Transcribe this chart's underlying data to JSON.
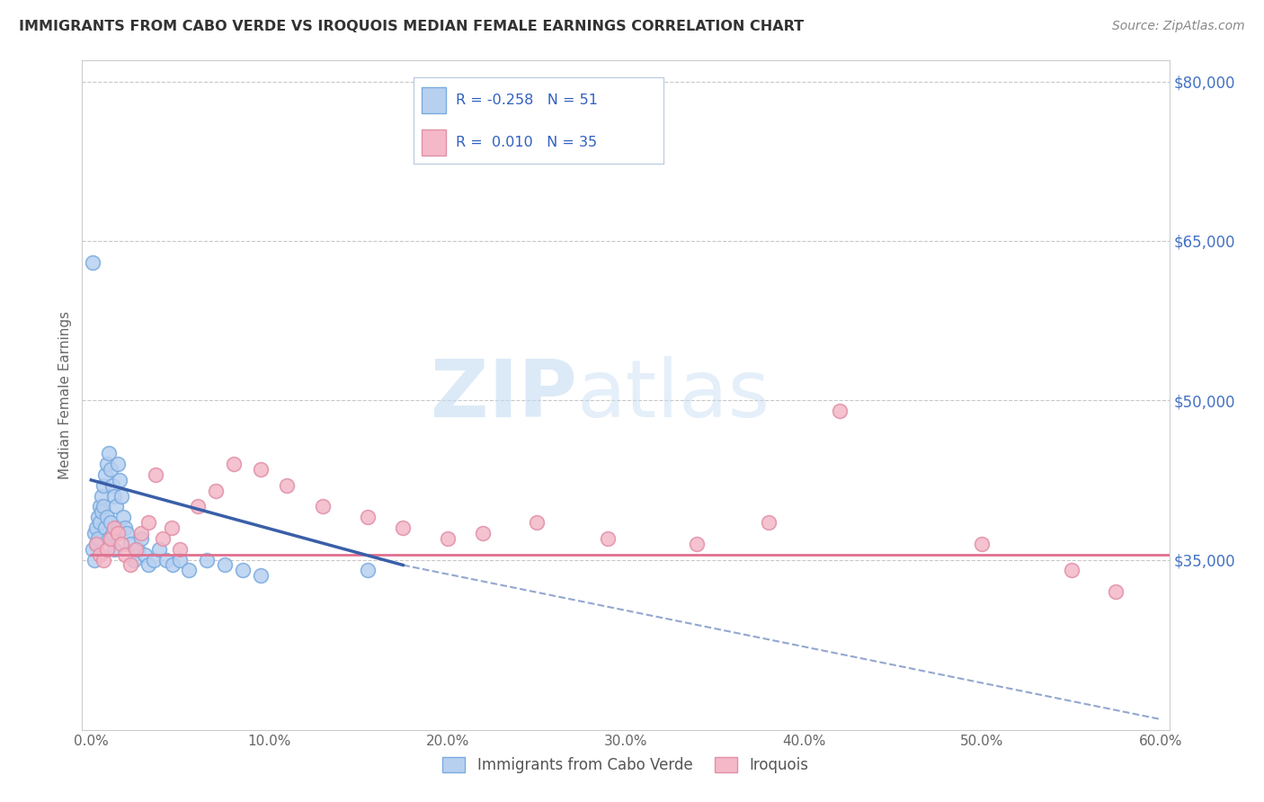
{
  "title": "IMMIGRANTS FROM CABO VERDE VS IROQUOIS MEDIAN FEMALE EARNINGS CORRELATION CHART",
  "source": "Source: ZipAtlas.com",
  "ylabel": "Median Female Earnings",
  "right_ytick_labels": [
    "$80,000",
    "$65,000",
    "$50,000",
    "$35,000"
  ],
  "right_ytick_values": [
    80000,
    65000,
    50000,
    35000
  ],
  "xlim": [
    -0.005,
    0.605
  ],
  "ylim": [
    19000,
    82000
  ],
  "xtick_labels": [
    "0.0%",
    "10.0%",
    "20.0%",
    "30.0%",
    "40.0%",
    "50.0%",
    "60.0%"
  ],
  "xtick_values": [
    0.0,
    0.1,
    0.2,
    0.3,
    0.4,
    0.5,
    0.6
  ],
  "legend_entries": [
    {
      "label": "Immigrants from Cabo Verde",
      "R": "-0.258",
      "N": "51",
      "color": "#b8d0f0",
      "edge": "#7aabdf"
    },
    {
      "label": "Iroquois",
      "R": "0.010",
      "N": "35",
      "color": "#f4b8c8",
      "edge": "#e090a8"
    }
  ],
  "blue_scatter_x": [
    0.001,
    0.002,
    0.002,
    0.003,
    0.003,
    0.004,
    0.004,
    0.005,
    0.005,
    0.006,
    0.006,
    0.007,
    0.007,
    0.008,
    0.008,
    0.009,
    0.009,
    0.01,
    0.01,
    0.011,
    0.011,
    0.012,
    0.012,
    0.013,
    0.013,
    0.014,
    0.015,
    0.015,
    0.016,
    0.017,
    0.018,
    0.019,
    0.02,
    0.022,
    0.024,
    0.026,
    0.028,
    0.03,
    0.032,
    0.035,
    0.038,
    0.042,
    0.046,
    0.05,
    0.055,
    0.065,
    0.075,
    0.085,
    0.095,
    0.155,
    0.001
  ],
  "blue_scatter_y": [
    36000,
    37500,
    35000,
    38000,
    36500,
    39000,
    37000,
    40000,
    38500,
    41000,
    39500,
    42000,
    40000,
    43000,
    38000,
    44000,
    39000,
    45000,
    37000,
    43500,
    38500,
    42000,
    37500,
    41000,
    36000,
    40000,
    44000,
    38000,
    42500,
    41000,
    39000,
    38000,
    37500,
    36500,
    35000,
    36000,
    37000,
    35500,
    34500,
    35000,
    36000,
    35000,
    34500,
    35000,
    34000,
    35000,
    34500,
    34000,
    33500,
    34000,
    63000
  ],
  "pink_scatter_x": [
    0.003,
    0.005,
    0.007,
    0.009,
    0.011,
    0.013,
    0.015,
    0.017,
    0.019,
    0.022,
    0.025,
    0.028,
    0.032,
    0.036,
    0.04,
    0.045,
    0.05,
    0.06,
    0.07,
    0.08,
    0.095,
    0.11,
    0.13,
    0.155,
    0.175,
    0.2,
    0.22,
    0.25,
    0.29,
    0.34,
    0.38,
    0.42,
    0.5,
    0.55,
    0.575
  ],
  "pink_scatter_y": [
    36500,
    35500,
    35000,
    36000,
    37000,
    38000,
    37500,
    36500,
    35500,
    34500,
    36000,
    37500,
    38500,
    43000,
    37000,
    38000,
    36000,
    40000,
    41500,
    44000,
    43500,
    42000,
    40000,
    39000,
    38000,
    37000,
    37500,
    38500,
    37000,
    36500,
    38500,
    49000,
    36500,
    34000,
    32000
  ],
  "blue_line_x0": 0.0,
  "blue_line_y0": 42500,
  "blue_line_x1": 0.175,
  "blue_line_y1": 34500,
  "blue_line_dash_x1": 0.6,
  "blue_line_dash_y1": 20000,
  "pink_line_y": 35500,
  "blue_line_color": "#3a5fa8",
  "pink_line_color": "#e07090",
  "watermark_zip": "ZIP",
  "watermark_atlas": "atlas",
  "background_color": "#ffffff",
  "grid_color": "#c8c8c8"
}
